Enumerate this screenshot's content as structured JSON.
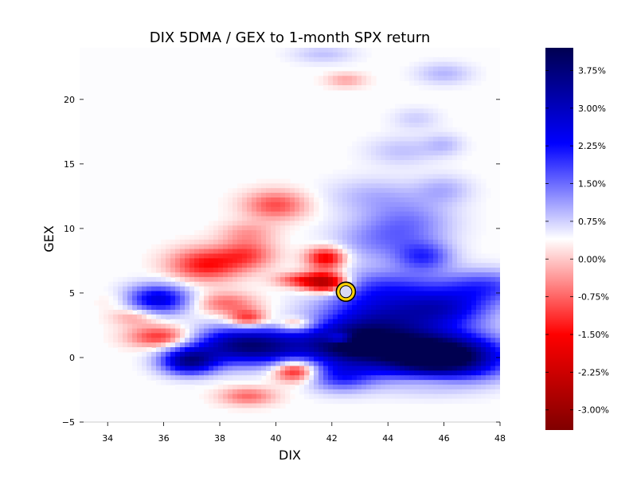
{
  "chart_data": {
    "type": "heatmap",
    "title": "DIX 5DMA / GEX to 1-month SPX return",
    "xlabel": "DIX",
    "ylabel": "GEX",
    "xlim": [
      33,
      48
    ],
    "ylim": [
      -5,
      24
    ],
    "x_ticks": [
      34,
      36,
      38,
      40,
      42,
      44,
      46,
      48
    ],
    "y_ticks": [
      -5,
      0,
      5,
      10,
      15,
      20
    ],
    "x_tick_labels": [
      "34",
      "36",
      "38",
      "40",
      "42",
      "44",
      "46",
      "48"
    ],
    "y_tick_labels": [
      "−5",
      "0",
      "5",
      "10",
      "15",
      "20"
    ],
    "grid": false,
    "colormap": "seismic_r",
    "colors": {
      "negative": "#800000",
      "mid_neg": "#ff0000",
      "zero": "#ffffff",
      "mid_pos": "#0000ff",
      "positive": "#000050"
    },
    "colorbar": {
      "min": -3.4,
      "max": 4.2,
      "ticks": [
        -3.0,
        -2.25,
        -1.5,
        -0.75,
        0.0,
        0.75,
        1.5,
        2.25,
        3.0,
        3.75
      ],
      "tick_labels": [
        "-3.00%",
        "-2.25%",
        "-1.50%",
        "-0.75%",
        "0.00%",
        "0.75%",
        "1.50%",
        "2.25%",
        "3.00%",
        "3.75%"
      ],
      "placement": "right"
    },
    "blobs": [
      {
        "x": 46.3,
        "y": 0.0,
        "v": 3.6,
        "sx": 1.4,
        "sy": 1.2
      },
      {
        "x": 44.5,
        "y": 0.5,
        "v": 3.0,
        "sx": 1.6,
        "sy": 1.4
      },
      {
        "x": 42.5,
        "y": 1.0,
        "v": 2.4,
        "sx": 1.0,
        "sy": 1.0
      },
      {
        "x": 43.5,
        "y": 3.0,
        "v": 2.3,
        "sx": 1.4,
        "sy": 1.5
      },
      {
        "x": 46.0,
        "y": 3.8,
        "v": 2.2,
        "sx": 1.2,
        "sy": 1.0
      },
      {
        "x": 47.5,
        "y": 5.5,
        "v": 1.5,
        "sx": 1.1,
        "sy": 0.9
      },
      {
        "x": 40.0,
        "y": 0.8,
        "v": 2.2,
        "sx": 1.3,
        "sy": 1.0
      },
      {
        "x": 38.5,
        "y": 1.0,
        "v": 2.4,
        "sx": 1.2,
        "sy": 1.0
      },
      {
        "x": 36.9,
        "y": -0.3,
        "v": 3.2,
        "sx": 0.7,
        "sy": 0.7
      },
      {
        "x": 35.8,
        "y": 4.5,
        "v": 2.5,
        "sx": 0.8,
        "sy": 0.8
      },
      {
        "x": 42.3,
        "y": -1.5,
        "v": 1.5,
        "sx": 0.8,
        "sy": 0.8
      },
      {
        "x": 44.0,
        "y": 5.5,
        "v": 1.2,
        "sx": 1.5,
        "sy": 1.0
      },
      {
        "x": 43.7,
        "y": 9.0,
        "v": 0.9,
        "sx": 1.2,
        "sy": 1.2
      },
      {
        "x": 45.3,
        "y": 7.8,
        "v": 1.5,
        "sx": 0.7,
        "sy": 0.8
      },
      {
        "x": 44.8,
        "y": 10.5,
        "v": 0.9,
        "sx": 1.1,
        "sy": 1.2
      },
      {
        "x": 43.5,
        "y": 12.5,
        "v": 0.6,
        "sx": 1.2,
        "sy": 1.0
      },
      {
        "x": 46.0,
        "y": 13.0,
        "v": 0.6,
        "sx": 0.7,
        "sy": 0.8
      },
      {
        "x": 44.5,
        "y": 16.0,
        "v": 0.5,
        "sx": 0.9,
        "sy": 0.8
      },
      {
        "x": 46.0,
        "y": 16.5,
        "v": 0.5,
        "sx": 0.5,
        "sy": 0.6
      },
      {
        "x": 46.0,
        "y": 22.0,
        "v": 0.6,
        "sx": 0.7,
        "sy": 0.6
      },
      {
        "x": 41.7,
        "y": 23.5,
        "v": 0.5,
        "sx": 0.8,
        "sy": 0.5
      },
      {
        "x": 45.0,
        "y": 18.5,
        "v": 0.4,
        "sx": 0.6,
        "sy": 0.6
      },
      {
        "x": 41.8,
        "y": 5.8,
        "v": -3.0,
        "sx": 0.55,
        "sy": 0.55
      },
      {
        "x": 41.8,
        "y": 7.7,
        "v": -2.0,
        "sx": 0.5,
        "sy": 0.6
      },
      {
        "x": 40.8,
        "y": 6.0,
        "v": -1.2,
        "sx": 0.6,
        "sy": 0.4
      },
      {
        "x": 37.5,
        "y": 7.2,
        "v": -1.6,
        "sx": 0.9,
        "sy": 0.9
      },
      {
        "x": 39.0,
        "y": 8.0,
        "v": -1.1,
        "sx": 0.7,
        "sy": 0.8
      },
      {
        "x": 39.0,
        "y": 3.0,
        "v": -1.6,
        "sx": 0.5,
        "sy": 0.5
      },
      {
        "x": 38.2,
        "y": 4.2,
        "v": -1.0,
        "sx": 0.8,
        "sy": 0.6
      },
      {
        "x": 35.9,
        "y": 1.6,
        "v": -1.5,
        "sx": 0.8,
        "sy": 0.6
      },
      {
        "x": 40.7,
        "y": -1.0,
        "v": -2.0,
        "sx": 0.55,
        "sy": 0.6
      },
      {
        "x": 39.0,
        "y": -3.0,
        "v": -1.0,
        "sx": 0.7,
        "sy": 0.5
      },
      {
        "x": 42.3,
        "y": 1.5,
        "v": -1.8,
        "sx": 0.35,
        "sy": 0.3
      },
      {
        "x": 40.7,
        "y": 2.6,
        "v": -1.2,
        "sx": 0.45,
        "sy": 0.35
      },
      {
        "x": 40.0,
        "y": 11.8,
        "v": -1.2,
        "sx": 0.8,
        "sy": 0.8
      },
      {
        "x": 39.0,
        "y": 9.7,
        "v": -0.6,
        "sx": 0.7,
        "sy": 0.6
      },
      {
        "x": 35.0,
        "y": 3.2,
        "v": -0.8,
        "sx": 0.6,
        "sy": 0.5
      },
      {
        "x": 42.5,
        "y": 21.5,
        "v": -0.6,
        "sx": 0.5,
        "sy": 0.4
      },
      {
        "x": 45.5,
        "y": -1.8,
        "v": -0.6,
        "sx": 1.0,
        "sy": 0.4
      },
      {
        "x": 34.3,
        "y": 4.4,
        "v": -0.3,
        "sx": 0.5,
        "sy": 0.5
      }
    ],
    "highlight_point": {
      "x": 42.5,
      "y": 5.1
    }
  }
}
